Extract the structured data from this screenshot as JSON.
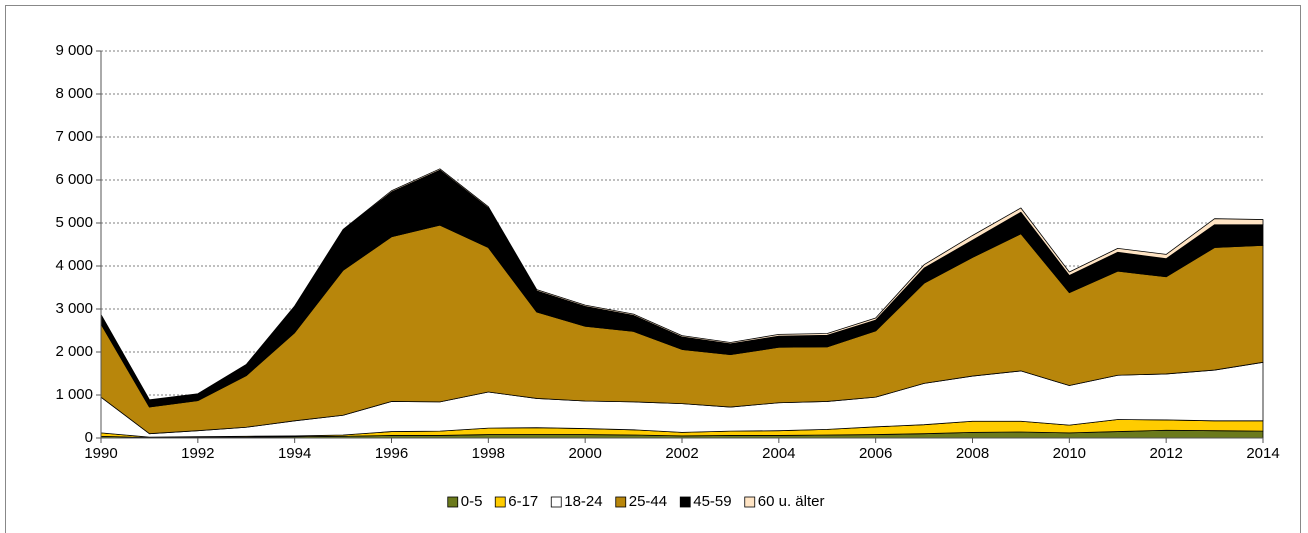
{
  "chart_data": {
    "type": "stacked_area",
    "x": [
      1990,
      1991,
      1992,
      1993,
      1994,
      1995,
      1996,
      1997,
      1998,
      1999,
      2000,
      2001,
      2002,
      2003,
      2004,
      2005,
      2006,
      2007,
      2008,
      2009,
      2010,
      2011,
      2012,
      2013,
      2014
    ],
    "series": [
      {
        "name": "0-5",
        "color": "#6b7a1c",
        "values": [
          40,
          10,
          20,
          20,
          30,
          40,
          60,
          60,
          80,
          80,
          80,
          70,
          50,
          60,
          60,
          70,
          80,
          100,
          130,
          140,
          120,
          150,
          180,
          170,
          160
        ]
      },
      {
        "name": "6-17",
        "color": "#ffcc00",
        "values": [
          80,
          10,
          10,
          20,
          20,
          30,
          90,
          100,
          150,
          160,
          140,
          120,
          80,
          100,
          110,
          130,
          180,
          210,
          260,
          250,
          180,
          280,
          240,
          230,
          240
        ]
      },
      {
        "name": "18-24",
        "color": "#ffffff",
        "values": [
          830,
          80,
          140,
          210,
          350,
          460,
          700,
          680,
          840,
          680,
          640,
          650,
          670,
          560,
          650,
          650,
          690,
          960,
          1050,
          1170,
          920,
          1030,
          1070,
          1180,
          1360
        ]
      },
      {
        "name": "25-44",
        "color": "#b8860b",
        "values": [
          1700,
          620,
          700,
          1200,
          2050,
          3370,
          3830,
          4110,
          3360,
          2010,
          1740,
          1640,
          1260,
          1220,
          1290,
          1270,
          1540,
          2330,
          2760,
          3190,
          2160,
          2420,
          2260,
          2850,
          2720
        ]
      },
      {
        "name": "45-59",
        "color": "#000000",
        "values": [
          210,
          160,
          150,
          250,
          600,
          930,
          1040,
          1280,
          920,
          490,
          460,
          370,
          290,
          250,
          260,
          270,
          250,
          350,
          400,
          500,
          400,
          440,
          420,
          530,
          480
        ]
      },
      {
        "name": "60 u. älter",
        "color": "#ffe4c4",
        "values": [
          10,
          10,
          10,
          10,
          20,
          20,
          30,
          30,
          30,
          30,
          30,
          30,
          30,
          30,
          40,
          40,
          50,
          80,
          110,
          100,
          80,
          90,
          100,
          140,
          120
        ]
      }
    ],
    "xlim": [
      1990,
      2014
    ],
    "xticks": [
      1990,
      1992,
      1994,
      1996,
      1998,
      2000,
      2002,
      2004,
      2006,
      2008,
      2010,
      2012,
      2014
    ],
    "ylim": [
      0,
      9000
    ],
    "yticks": [
      0,
      {
        "value": 1000,
        "label": "1 000"
      },
      {
        "value": 2000,
        "label": "2 000"
      },
      {
        "value": 3000,
        "label": "3 000"
      },
      {
        "value": 4000,
        "label": "4 000"
      },
      {
        "value": 5000,
        "label": "5 000"
      },
      {
        "value": 6000,
        "label": "6 000"
      },
      {
        "value": 7000,
        "label": "7 000"
      },
      {
        "value": 8000,
        "label": "8 000"
      },
      {
        "value": 9000,
        "label": "9 000"
      }
    ],
    "grid": true,
    "legend": "bottom"
  }
}
